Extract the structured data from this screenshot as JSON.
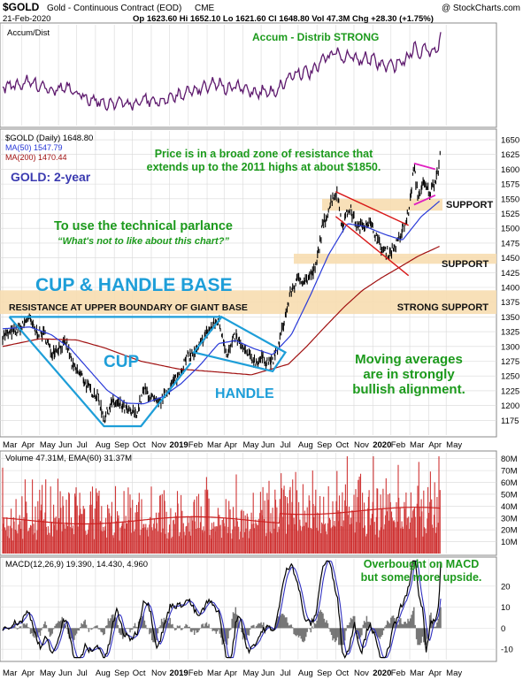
{
  "header": {
    "symbol": "$GOLD",
    "name": "Gold - Continuous Contract (EOD)",
    "exchange": "CME",
    "credit": "@ StockCharts.com",
    "date": "21-Feb-2020",
    "quote": "Op 1623.60  Hi 1652.10  Lo 1621.60  Cl 1648.80  Vol 47.3M  Chg +28.30 (+1.75%)"
  },
  "colors": {
    "price": "#000000",
    "ma50": "#2a3ad8",
    "ma200": "#a01010",
    "accum": "#5e1a6e",
    "volume": "#c81414",
    "annotation_green": "#1c9a1c",
    "annotation_blue": "#1e9ed8",
    "annotation_navy": "#3a3ab0",
    "channel_red": "#d81818",
    "flag_magenta": "#e020c0",
    "zone_fill": "#f7ddb0",
    "grid": "#d8d8d8"
  },
  "chart_data": [
    {
      "type": "line",
      "panel": "accum-dist",
      "title": "Accum/Dist",
      "annotation": "Accum - Distrib STRONG",
      "series": [
        {
          "name": "Accum/Dist"
        }
      ]
    },
    {
      "type": "line",
      "panel": "price",
      "legend": [
        {
          "name": "$GOLD (Daily) 1648.80",
          "color": "#000000"
        },
        {
          "name": "MA(50) 1547.79",
          "color": "#2a3ad8"
        },
        {
          "name": "MA(200) 1470.44",
          "color": "#a01010"
        }
      ],
      "ylim": [
        1150,
        1665
      ],
      "y_ticks": [
        1175,
        1200,
        1225,
        1250,
        1275,
        1300,
        1325,
        1350,
        1375,
        1400,
        1425,
        1450,
        1475,
        1500,
        1525,
        1550,
        1575,
        1600,
        1625,
        1650
      ],
      "x_axis": {
        "start": "2018-03-01",
        "end": "2020-05-01",
        "labels": [
          "Mar",
          "Apr",
          "May",
          "Jun",
          "Jul",
          "Aug",
          "Sep",
          "Oct",
          "Nov",
          "2019",
          "Feb",
          "Mar",
          "Apr",
          "May",
          "Jun",
          "Jul",
          "Aug",
          "Sep",
          "Oct",
          "Nov",
          "2020",
          "Feb",
          "Mar",
          "Apr",
          "May"
        ]
      },
      "price_path": [
        [
          "2018-03-01",
          1318
        ],
        [
          "2018-03-15",
          1322
        ],
        [
          "2018-04-01",
          1330
        ],
        [
          "2018-04-12",
          1350
        ],
        [
          "2018-04-25",
          1325
        ],
        [
          "2018-05-10",
          1320
        ],
        [
          "2018-05-20",
          1290
        ],
        [
          "2018-06-05",
          1300
        ],
        [
          "2018-06-15",
          1305
        ],
        [
          "2018-06-25",
          1265
        ],
        [
          "2018-07-10",
          1250
        ],
        [
          "2018-07-20",
          1230
        ],
        [
          "2018-08-05",
          1215
        ],
        [
          "2018-08-16",
          1178
        ],
        [
          "2018-08-28",
          1205
        ],
        [
          "2018-09-12",
          1200
        ],
        [
          "2018-09-28",
          1187
        ],
        [
          "2018-10-10",
          1190
        ],
        [
          "2018-10-20",
          1228
        ],
        [
          "2018-10-31",
          1215
        ],
        [
          "2018-11-13",
          1200
        ],
        [
          "2018-11-28",
          1225
        ],
        [
          "2018-12-15",
          1250
        ],
        [
          "2019-01-01",
          1284
        ],
        [
          "2019-01-15",
          1290
        ],
        [
          "2019-01-31",
          1322
        ],
        [
          "2019-02-20",
          1345
        ],
        [
          "2019-03-07",
          1285
        ],
        [
          "2019-03-20",
          1318
        ],
        [
          "2019-04-01",
          1295
        ],
        [
          "2019-04-23",
          1273
        ],
        [
          "2019-05-02",
          1280
        ],
        [
          "2019-05-20",
          1272
        ],
        [
          "2019-05-31",
          1305
        ],
        [
          "2019-06-20",
          1395
        ],
        [
          "2019-07-03",
          1415
        ],
        [
          "2019-07-15",
          1412
        ],
        [
          "2019-07-30",
          1430
        ],
        [
          "2019-08-10",
          1500
        ],
        [
          "2019-08-28",
          1555
        ],
        [
          "2019-09-04",
          1560
        ],
        [
          "2019-09-12",
          1505
        ],
        [
          "2019-09-24",
          1535
        ],
        [
          "2019-10-08",
          1500
        ],
        [
          "2019-10-25",
          1512
        ],
        [
          "2019-11-06",
          1490
        ],
        [
          "2019-11-15",
          1465
        ],
        [
          "2019-11-28",
          1458
        ],
        [
          "2019-12-12",
          1475
        ],
        [
          "2019-12-27",
          1512
        ],
        [
          "2020-01-03",
          1552
        ],
        [
          "2020-01-08",
          1605
        ],
        [
          "2020-01-15",
          1555
        ],
        [
          "2020-01-24",
          1575
        ],
        [
          "2020-02-04",
          1560
        ],
        [
          "2020-02-12",
          1582
        ],
        [
          "2020-02-18",
          1604
        ],
        [
          "2020-02-21",
          1648.8
        ]
      ],
      "ma50_path": [
        [
          "2018-03-01",
          1330
        ],
        [
          "2018-04-15",
          1333
        ],
        [
          "2018-05-20",
          1320
        ],
        [
          "2018-06-20",
          1297
        ],
        [
          "2018-07-20",
          1262
        ],
        [
          "2018-08-20",
          1226
        ],
        [
          "2018-09-20",
          1204
        ],
        [
          "2018-10-20",
          1203
        ],
        [
          "2018-11-20",
          1215
        ],
        [
          "2018-12-20",
          1237
        ],
        [
          "2019-01-20",
          1268
        ],
        [
          "2019-02-20",
          1305
        ],
        [
          "2019-03-20",
          1310
        ],
        [
          "2019-04-20",
          1296
        ],
        [
          "2019-05-20",
          1286
        ],
        [
          "2019-06-20",
          1320
        ],
        [
          "2019-07-20",
          1384
        ],
        [
          "2019-08-20",
          1455
        ],
        [
          "2019-09-20",
          1508
        ],
        [
          "2019-10-20",
          1503
        ],
        [
          "2019-11-20",
          1490
        ],
        [
          "2019-12-20",
          1480
        ],
        [
          "2020-01-20",
          1520
        ],
        [
          "2020-02-21",
          1547.79
        ]
      ],
      "ma200_path": [
        [
          "2018-03-01",
          1300
        ],
        [
          "2018-05-01",
          1313
        ],
        [
          "2018-07-01",
          1311
        ],
        [
          "2018-08-15",
          1298
        ],
        [
          "2018-10-15",
          1275
        ],
        [
          "2018-12-15",
          1262
        ],
        [
          "2019-02-15",
          1257
        ],
        [
          "2019-04-15",
          1252
        ],
        [
          "2019-06-15",
          1270
        ],
        [
          "2019-07-15",
          1300
        ],
        [
          "2019-08-15",
          1334
        ],
        [
          "2019-09-15",
          1367
        ],
        [
          "2019-10-15",
          1395
        ],
        [
          "2019-11-15",
          1416
        ],
        [
          "2019-12-15",
          1434
        ],
        [
          "2020-01-15",
          1453
        ],
        [
          "2020-02-21",
          1470.44
        ]
      ],
      "zones": [
        {
          "label": "RESISTANCE AT UPPER BOUNDARY OF GIANT BASE",
          "right_label": "STRONG SUPPORT",
          "from": 1355,
          "to": 1395
        },
        {
          "label": "SUPPORT",
          "from": 1440,
          "to": 1457
        },
        {
          "label": "SUPPORT",
          "from": 1530,
          "to": 1550
        }
      ],
      "annotations": {
        "title": "GOLD: 2-year",
        "resistance_note": "Price is in a broad zone of resistance that extends up to the 2011 highs at about $1850.",
        "parlance_1": "To use the technical parlance",
        "parlance_2": "“What's not to like about this chart?”",
        "pattern": "CUP & HANDLE BASE",
        "cup": "CUP",
        "handle": "HANDLE",
        "ma_note": "Moving averages are in strongly bullish alignment."
      }
    },
    {
      "type": "bar",
      "panel": "volume",
      "title": "Volume 47.31M, EMA(60) 31.37M",
      "ylim": [
        0,
        85
      ],
      "y_ticks": [
        "10M",
        "20M",
        "30M",
        "40M",
        "50M",
        "60M",
        "70M",
        "80M"
      ]
    },
    {
      "type": "line",
      "panel": "macd",
      "title": "MACD(12,26,9) 19.390, 14.430, 4.960",
      "values": {
        "macd": 19.39,
        "signal": 14.43,
        "histogram": 4.96
      },
      "annotation": "Overbought on MACD but some more upside.",
      "ylim": [
        -15,
        33
      ],
      "y_ticks": [
        -10,
        0,
        10,
        20
      ]
    }
  ]
}
